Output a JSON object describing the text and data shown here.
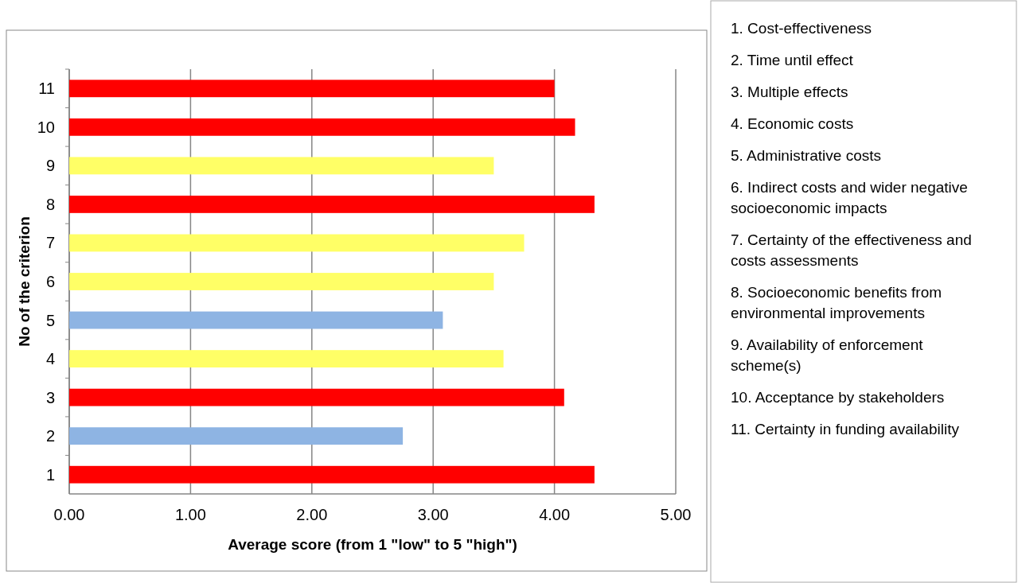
{
  "chart_data": {
    "type": "bar",
    "orientation": "horizontal",
    "xlabel": "Average score (from 1 \"low\" to 5 \"high\")",
    "ylabel": "No of the criterion",
    "categories": [
      "11",
      "10",
      "9",
      "8",
      "7",
      "6",
      "5",
      "4",
      "3",
      "2",
      "1"
    ],
    "values": [
      4.0,
      4.17,
      3.5,
      4.33,
      3.75,
      3.5,
      3.08,
      3.58,
      4.08,
      2.75,
      4.33
    ],
    "colors": [
      "#ff0000",
      "#ff0000",
      "#ffff66",
      "#ff0000",
      "#ffff66",
      "#ffff66",
      "#8eb4e3",
      "#ffff66",
      "#ff0000",
      "#8eb4e3",
      "#ff0000"
    ],
    "xlim": [
      0,
      5
    ],
    "xticks": [
      {
        "value": 0,
        "label": "0.00"
      },
      {
        "value": 1,
        "label": "1.00"
      },
      {
        "value": 2,
        "label": "2.00"
      },
      {
        "value": 3,
        "label": "3.00"
      },
      {
        "value": 4,
        "label": "4.00"
      },
      {
        "value": 5,
        "label": "5.00"
      }
    ],
    "grid": "x",
    "annotations": [
      "1. Cost-effectiveness",
      "2. Time until effect",
      "3. Multiple effects",
      "4. Economic costs",
      "5. Administrative costs",
      "6. Indirect costs and wider negative socioeconomic impacts",
      "7. Certainty of the effectiveness and costs assessments",
      "8. Socioeconomic benefits from environmental improvements",
      "9. Availability of enforcement scheme(s)",
      "10. Acceptance by stakeholders",
      "11. Certainty in funding availability"
    ]
  }
}
